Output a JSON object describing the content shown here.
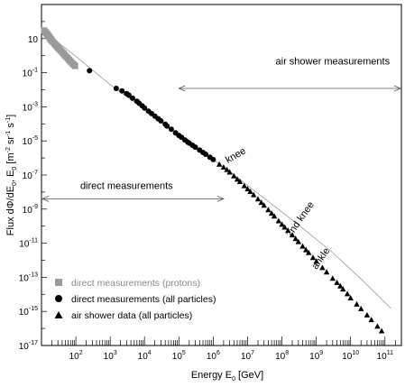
{
  "chart_data": {
    "type": "scatter",
    "title": "",
    "xlabel": "Energy E",
    "xlabel_sub": "0",
    "xlabel_unit": "[GeV]",
    "ylabel": "Flux dΦ/dE",
    "ylabel_rest": ", E",
    "ylabel_sub": "0",
    "ylabel_unit_parts": [
      "[m",
      "-2",
      " sr",
      "-1",
      " s",
      "-1",
      "]"
    ],
    "x_scale": "log",
    "y_scale": "log",
    "xlim": [
      10,
      300000000000.0
    ],
    "ylim": [
      1e-17,
      1000
    ],
    "grid": false,
    "legend_position": "bottom-left",
    "x_ticks": [
      {
        "base": "10",
        "exp": "2",
        "value": 100
      },
      {
        "base": "10",
        "exp": "3",
        "value": 1000
      },
      {
        "base": "10",
        "exp": "4",
        "value": 10000
      },
      {
        "base": "10",
        "exp": "5",
        "value": 100000
      },
      {
        "base": "10",
        "exp": "6",
        "value": 1000000
      },
      {
        "base": "10",
        "exp": "7",
        "value": 10000000
      },
      {
        "base": "10",
        "exp": "8",
        "value": 100000000
      },
      {
        "base": "10",
        "exp": "9",
        "value": 1000000000
      },
      {
        "base": "10",
        "exp": "10",
        "value": 10000000000
      },
      {
        "base": "10",
        "exp": "11",
        "value": 100000000000
      }
    ],
    "y_ticks": [
      {
        "text": "10",
        "base": "",
        "exp": "",
        "value": 10
      },
      {
        "text": "",
        "base": "10",
        "exp": "-1",
        "value": 0.1
      },
      {
        "text": "",
        "base": "10",
        "exp": "-3",
        "value": 0.001
      },
      {
        "text": "",
        "base": "10",
        "exp": "-5",
        "value": 1e-05
      },
      {
        "text": "",
        "base": "10",
        "exp": "-7",
        "value": 1e-07
      },
      {
        "text": "",
        "base": "10",
        "exp": "-9",
        "value": 1e-09
      },
      {
        "text": "",
        "base": "10",
        "exp": "-11",
        "value": 1e-11
      },
      {
        "text": "",
        "base": "10",
        "exp": "-13",
        "value": 1e-13
      },
      {
        "text": "",
        "base": "10",
        "exp": "-15",
        "value": 1e-15
      },
      {
        "text": "",
        "base": "10",
        "exp": "-17",
        "value": 1e-17
      }
    ],
    "annotations": [
      {
        "name": "annotation-air-shower",
        "text": "air shower measurements",
        "x": 3000000000.0,
        "y": 0.3,
        "arrow": {
          "x_from": 100000.0,
          "x_to": 300000000000.0,
          "y": 0.012
        }
      },
      {
        "name": "annotation-direct",
        "text": "direct measurements",
        "x": 3000.0,
        "y": 1.5e-08,
        "arrow": {
          "x_from": 10,
          "x_to": 2000000.0,
          "y": 4e-09
        }
      },
      {
        "name": "annotation-knee",
        "text": "knee",
        "x": 5000000.0,
        "y": 1e-06,
        "rotate": -30
      },
      {
        "name": "annotation-2nd-knee",
        "text": "2nd knee",
        "x": 400000000.0,
        "y": 2e-10,
        "rotate": -55
      },
      {
        "name": "annotation-ankle",
        "text": "ankle",
        "x": 1600000000.0,
        "y": 1e-12,
        "rotate": -55
      }
    ],
    "fit_line": {
      "x": [
        10,
        100,
        1000,
        3000000.0,
        300000000.0,
        3000000000.0,
        20000000000.0,
        150000000000.0
      ],
      "y": [
        35,
        0.9,
        0.02,
        1.6e-07,
        1.2e-10,
        2.8e-12,
        8e-14,
        1.5e-15
      ]
    },
    "series": [
      {
        "name": "direct measurements (protons)",
        "marker": "square",
        "color": "#9a9a9a",
        "points": [
          [
            12,
            30
          ],
          [
            13,
            24
          ],
          [
            14,
            20
          ],
          [
            15,
            17
          ],
          [
            16,
            14.5
          ],
          [
            17,
            12
          ],
          [
            18,
            10
          ],
          [
            19,
            8.8
          ],
          [
            20,
            7.5
          ],
          [
            22,
            6.2
          ],
          [
            24,
            5.0
          ],
          [
            26,
            4.2
          ],
          [
            28,
            3.5
          ],
          [
            30,
            3.0
          ],
          [
            33,
            2.5
          ],
          [
            36,
            2.0
          ],
          [
            40,
            1.6
          ],
          [
            44,
            1.3
          ],
          [
            48,
            1.05
          ],
          [
            53,
            0.85
          ],
          [
            58,
            0.7
          ],
          [
            64,
            0.56
          ],
          [
            70,
            0.46
          ],
          [
            78,
            0.37
          ],
          [
            86,
            0.3
          ],
          [
            95,
            0.25
          ]
        ]
      },
      {
        "name": "direct measurements (all particles)",
        "marker": "circle",
        "color": "#000000",
        "points": [
          [
            250,
            0.13
          ],
          [
            1500,
            0.012
          ],
          [
            2200,
            0.0085
          ],
          [
            3000,
            0.006
          ],
          [
            3500,
            0.0048
          ],
          [
            4500,
            0.0032
          ],
          [
            6000,
            0.0021
          ],
          [
            7000,
            0.0016
          ],
          [
            8500,
            0.00115
          ],
          [
            10000,
            0.00085
          ],
          [
            13000,
            0.00055
          ],
          [
            16000,
            0.0004
          ],
          [
            20000,
            0.00028
          ],
          [
            25000,
            0.0002
          ],
          [
            30000,
            0.00015
          ],
          [
            40000,
            9.5e-05
          ],
          [
            45000,
            7.5e-05
          ],
          [
            60000,
            4.8e-05
          ],
          [
            80000,
            3e-05
          ],
          [
            100000,
            2.1e-05
          ],
          [
            120000,
            1.6e-05
          ],
          [
            150000,
            1.15e-05
          ],
          [
            180000,
            8.5e-06
          ],
          [
            200000,
            7.5e-06
          ],
          [
            250000,
            5.5e-06
          ],
          [
            300000,
            4.3e-06
          ],
          [
            400000,
            2.9e-06
          ],
          [
            500000,
            2.1e-06
          ],
          [
            600000,
            1.65e-06
          ],
          [
            800000,
            1.1e-06
          ],
          [
            1000000,
            8e-07
          ]
        ]
      },
      {
        "name": "air shower data (all particles)",
        "marker": "triangle",
        "color": "#000000",
        "points": [
          [
            1500000,
            4.2e-07
          ],
          [
            2000000,
            2.8e-07
          ],
          [
            2500000,
            2e-07
          ],
          [
            3000000,
            1.45e-07
          ],
          [
            4000000,
            8.5e-08
          ],
          [
            5000000,
            5.5e-08
          ],
          [
            6000000,
            4e-08
          ],
          [
            8000000,
            2.3e-08
          ],
          [
            10000000,
            1.5e-08
          ],
          [
            12000000,
            1.05e-08
          ],
          [
            15000000,
            6.8e-09
          ],
          [
            20000000,
            3.8e-09
          ],
          [
            25000000,
            2.4e-09
          ],
          [
            30000000,
            1.65e-09
          ],
          [
            40000000,
            9e-10
          ],
          [
            50000000,
            5.6e-10
          ],
          [
            60000000,
            3.8e-10
          ],
          [
            80000000,
            2e-10
          ],
          [
            100000000,
            1.25e-10
          ],
          [
            120000000,
            8.5e-11
          ],
          [
            150000000,
            5.5e-11
          ],
          [
            200000000,
            3e-11
          ],
          [
            250000000,
            1.8e-11
          ],
          [
            300000000,
            1.2e-11
          ],
          [
            400000000,
            6.5e-12
          ],
          [
            500000000,
            4e-12
          ],
          [
            600000000,
            2.7e-12
          ],
          [
            800000000,
            1.4e-12
          ],
          [
            1000000000,
            8.5e-13
          ],
          [
            1500000000,
            3.6e-13
          ],
          [
            2000000000,
            2e-13
          ],
          [
            3000000000,
            8.5e-14
          ],
          [
            4000000000,
            4.8e-14
          ],
          [
            5000000000,
            3e-14
          ],
          [
            6000000000,
            2e-14
          ],
          [
            8000000000,
            1.05e-14
          ],
          [
            10000000000,
            6e-15
          ],
          [
            15000000000,
            2.6e-15
          ],
          [
            20000000000,
            1.4e-15
          ],
          [
            30000000000,
            6e-16
          ],
          [
            40000000000,
            3.2e-16
          ],
          [
            60000000000,
            1.3e-16
          ],
          [
            80000000000,
            7e-17
          ]
        ]
      }
    ]
  }
}
